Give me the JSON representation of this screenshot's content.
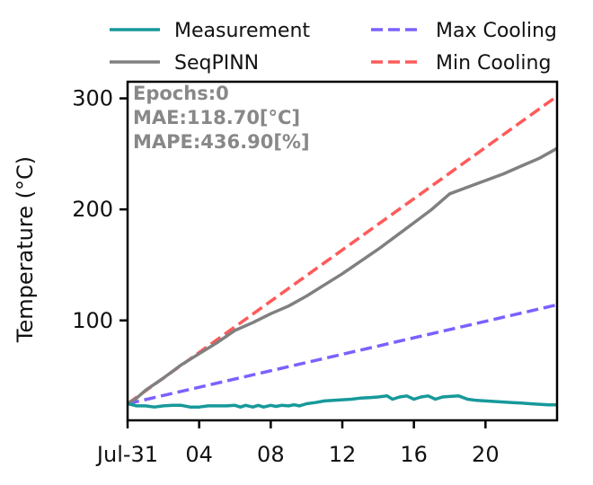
{
  "chart_data": {
    "type": "line",
    "title": "",
    "xlabel": "",
    "ylabel": "Temperature (°C)",
    "x_ticks": [
      {
        "value": 0,
        "label": "Jul-31"
      },
      {
        "value": 4,
        "label": "04"
      },
      {
        "value": 8,
        "label": "08"
      },
      {
        "value": 12,
        "label": "12"
      },
      {
        "value": 16,
        "label": "16"
      },
      {
        "value": 20,
        "label": "20"
      }
    ],
    "y_ticks": [
      {
        "value": 100,
        "label": "100"
      },
      {
        "value": 200,
        "label": "200"
      },
      {
        "value": 300,
        "label": "300"
      }
    ],
    "xlim": [
      0,
      24
    ],
    "ylim": [
      10,
      315
    ],
    "grid": false,
    "legend_position": "top, above plot, two columns",
    "annotations": [
      "Epochs:0",
      "MAE:118.70[°C]",
      "MAPE:436.90[%]"
    ],
    "series": [
      {
        "name": "Measurement",
        "color": "#17999a",
        "style": "solid",
        "x": [
          0,
          0.5,
          1,
          1.5,
          2,
          2.5,
          3,
          3.5,
          4,
          4.5,
          5,
          5.5,
          6,
          6.3,
          6.6,
          7,
          7.3,
          7.6,
          8,
          8.3,
          8.6,
          9,
          9.3,
          9.6,
          10,
          10.5,
          11,
          11.5,
          12,
          12.5,
          13,
          13.5,
          14,
          14.5,
          14.8,
          15.2,
          15.6,
          16,
          16.4,
          16.8,
          17.2,
          17.6,
          18,
          18.5,
          19,
          19.5,
          20,
          20.5,
          21,
          21.5,
          22,
          22.5,
          23,
          23.5,
          24
        ],
        "y": [
          25,
          23,
          23,
          22,
          23,
          23.5,
          23.5,
          22,
          22,
          23,
          23,
          23,
          23.5,
          22,
          23.5,
          22,
          23.5,
          22,
          23.5,
          22.5,
          23.5,
          23,
          24,
          23,
          25,
          26,
          27.5,
          28,
          28.5,
          29,
          30,
          30.5,
          31,
          32,
          29,
          31,
          32,
          29,
          31,
          32,
          29,
          31,
          31.5,
          32,
          29,
          28,
          27.5,
          27,
          26.5,
          26,
          25.5,
          25,
          24.5,
          24,
          24
        ]
      },
      {
        "name": "SeqPINN",
        "color": "#808080",
        "style": "solid",
        "x": [
          0,
          0.5,
          1,
          2,
          3,
          4,
          5,
          6,
          7,
          8,
          9,
          10,
          11,
          12,
          13,
          14,
          15,
          16,
          17,
          18,
          19,
          20,
          21,
          22,
          23,
          24
        ],
        "y": [
          25,
          30,
          37,
          48,
          60,
          70,
          80,
          91,
          98,
          106,
          113,
          122,
          132,
          142,
          153,
          164,
          176,
          188,
          200,
          214,
          220,
          226,
          232,
          239,
          246,
          255
        ]
      },
      {
        "name": "Max Cooling",
        "color": "#7b61ff",
        "style": "dashed",
        "x": [
          0,
          24
        ],
        "y": [
          25,
          114
        ]
      },
      {
        "name": "Min Cooling",
        "color": "#ff5a5a",
        "style": "dashed",
        "x": [
          0,
          24
        ],
        "y": [
          25,
          302
        ]
      }
    ]
  }
}
